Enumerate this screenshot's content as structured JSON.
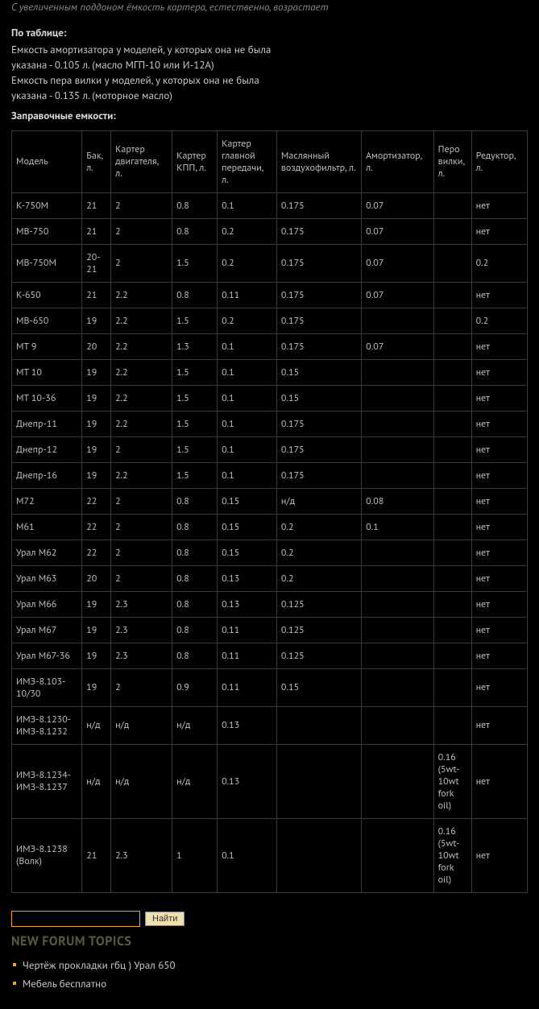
{
  "intro": {
    "italic": "С увеличенным поддоном ёмкость картера, естественно, возрастает",
    "heading1": "По таблице:",
    "line1": "Емкость амортизатора у моделей, у которых она не была",
    "line2": "указана - 0.105 л. (масло МГП-10 или И-12А)",
    "line3": "Емкость пера вилки у моделей, у которых она не была",
    "line4": "указана - 0.135 л. (моторное масло)",
    "heading2": "Заправочные емкости:"
  },
  "table": {
    "col_widths": [
      "78",
      "32",
      "68",
      "50",
      "66",
      "94",
      "80",
      "42",
      "62"
    ],
    "header_fontsize": "12",
    "cell_fontsize": "12",
    "border_color": "#3a3a3a",
    "text_color": "#bdbdbd",
    "background_color": "#000000",
    "columns": [
      "Модель",
      "Бак, л.",
      "Картер двигателя, л.",
      "Картер КПП, л.",
      "Картер главной передачи, л.",
      "Маслянный воздухофильтр, л.",
      "Амортизатор, л.",
      "Перо вилки, л.",
      "Редуктор, л."
    ],
    "rows": [
      [
        "К-750М",
        "21",
        "2",
        "0.8",
        "0.1",
        "0.175",
        "0.07",
        "",
        "нет"
      ],
      [
        "МВ-750",
        "21",
        "2",
        "0.8",
        "0.2",
        "0.175",
        "0.07",
        "",
        "нет"
      ],
      [
        "МВ-750М",
        "20-21",
        "2",
        "1.5",
        "0.2",
        "0.175",
        "0.07",
        "",
        "0.2"
      ],
      [
        "К-650",
        "21",
        "2.2",
        "0.8",
        "0.11",
        "0.175",
        "0.07",
        "",
        "нет"
      ],
      [
        "МВ-650",
        "19",
        "2.2",
        "1.5",
        "0.2",
        "0.175",
        "",
        "",
        "0.2"
      ],
      [
        "МТ 9",
        "20",
        "2.2",
        "1.3",
        "0.1",
        "0.175",
        "0.07",
        "",
        "нет"
      ],
      [
        "МТ 10",
        "19",
        "2.2",
        "1.5",
        "0.1",
        "0.15",
        "",
        "",
        "нет"
      ],
      [
        "МТ 10-36",
        "19",
        "2.2",
        "1.5",
        "0.1",
        "0.15",
        "",
        "",
        "нет"
      ],
      [
        "Днепр-11",
        "19",
        "2.2",
        "1.5",
        "0.1",
        "0.175",
        "",
        "",
        "нет"
      ],
      [
        "Днепр-12",
        "19",
        "2",
        "1.5",
        "0.1",
        "0.175",
        "",
        "",
        "нет"
      ],
      [
        "Днепр-16",
        "19",
        "2.2",
        "1.5",
        "0.1",
        "0.175",
        "",
        "",
        "нет"
      ],
      [
        "М72",
        "22",
        "2",
        "0.8",
        "0.15",
        "н/д",
        "0.08",
        "",
        "нет"
      ],
      [
        "М61",
        "22",
        "2",
        "0.8",
        "0.15",
        "0.2",
        "0.1",
        "",
        "нет"
      ],
      [
        "Урал М62",
        "22",
        "2",
        "0.8",
        "0.15",
        "0.2",
        "",
        "",
        "нет"
      ],
      [
        "Урал М63",
        "20",
        "2",
        "0.8",
        "0.13",
        "0.2",
        "",
        "",
        "нет"
      ],
      [
        "Урал М66",
        "19",
        "2.3",
        "0.8",
        "0.13",
        "0.125",
        "",
        "",
        "нет"
      ],
      [
        "Урал М67",
        "19",
        "2.3",
        "0.8",
        "0.11",
        "0.125",
        "",
        "",
        "нет"
      ],
      [
        "Урал М67-36",
        "19",
        "2.3",
        "0.8",
        "0.11",
        "0.125",
        "",
        "",
        "нет"
      ],
      [
        "ИМЗ-8.103-10/30",
        "19",
        "2",
        "0.9",
        "0.11",
        "0.15",
        "",
        "",
        "нет"
      ],
      [
        "ИМЗ-8.1230-ИМЗ-8.1232",
        "н/д",
        "н/д",
        "н/д",
        "0.13",
        "",
        "",
        "",
        "нет"
      ],
      [
        "ИМЗ-8.1234-ИМЗ-8.1237",
        "н/д",
        "н/д",
        "н/д",
        "0.13",
        "",
        "",
        "0.16 (5wt-10wt fork oil)",
        "нет"
      ],
      [
        "ИМЗ-8.1238 (Волк)",
        "21",
        "2.3",
        "1",
        "0.1",
        "",
        "",
        "0.16 (5wt-10wt fork oil)",
        "нет"
      ]
    ]
  },
  "search": {
    "button_label": "Найти"
  },
  "forum": {
    "title": "NEW FORUM TOPICS",
    "items": [
      "Чертёж прокладки гбц ) Урал 650",
      "Мебель бесплатно"
    ]
  }
}
